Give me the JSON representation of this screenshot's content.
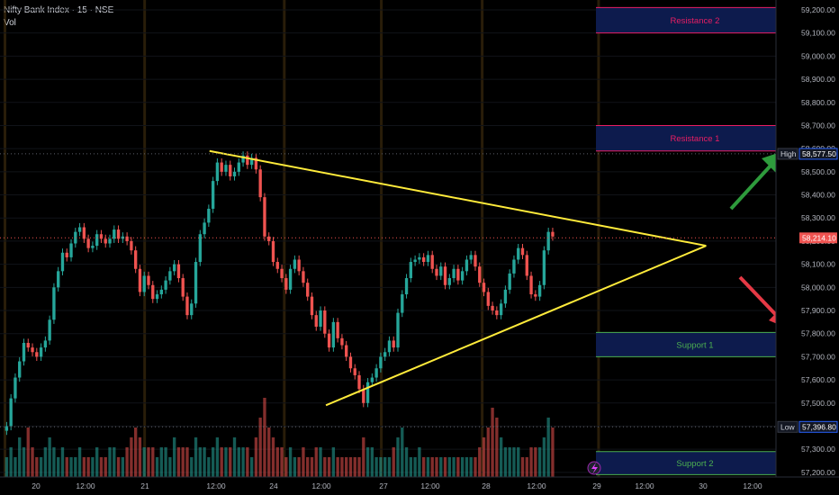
{
  "legend": {
    "symbol": "Nifty Bank Index · 15 · NSE",
    "volume_label": "Vol"
  },
  "colors": {
    "up": "#26a69a",
    "down": "#ef5350",
    "resistance": "#e91e63",
    "support": "#4caf50",
    "zone_fill": "#0d1b4d",
    "triangle": "#ffeb3b",
    "arrow_up": "#2e9b3c",
    "arrow_down": "#e53945",
    "session_line": "#4a3510"
  },
  "chart_data": {
    "type": "candlestick",
    "title": "",
    "symbol": "Nifty Bank Index",
    "interval": "15",
    "exchange": "NSE",
    "y_axis": {
      "ticks": [
        "59,200.00",
        "59,100.00",
        "59,000.00",
        "58,900.00",
        "58,800.00",
        "58,700.00",
        "58,600.00",
        "58,500.00",
        "58,400.00",
        "58,300.00",
        "58,200.00",
        "58,100.00",
        "58,000.00",
        "57,900.00",
        "57,800.00",
        "57,700.00",
        "57,600.00",
        "57,500.00",
        "57,400.00",
        "57,300.00",
        "57,200.00"
      ],
      "range": [
        57180,
        59235
      ]
    },
    "x_axis": {
      "ticks": [
        "20",
        "12:00",
        "21",
        "12:00",
        "24",
        "12:00",
        "27",
        "12:00",
        "28",
        "12:00",
        "29",
        "12:00",
        "30",
        "12:00"
      ]
    },
    "price_badges": [
      {
        "label": "High",
        "value": "58,577.50"
      },
      {
        "label": "",
        "value": "58,214.10"
      },
      {
        "label": "Low",
        "value": "57,396.80"
      }
    ],
    "zones": [
      {
        "name": "Resistance 2",
        "kind": "resistance",
        "top": 59210,
        "bottom": 59100
      },
      {
        "name": "Resistance 1",
        "kind": "resistance",
        "top": 58700,
        "bottom": 58590
      },
      {
        "name": "Support 1",
        "kind": "support",
        "top": 57805,
        "bottom": 57700
      },
      {
        "name": "Support 2",
        "kind": "support",
        "top": 57290,
        "bottom": 57190
      }
    ],
    "triangle": {
      "upper": [
        [
          0.27,
          58590
        ],
        [
          0.91,
          58180
        ]
      ],
      "lower": [
        [
          0.42,
          57490
        ],
        [
          0.91,
          58180
        ]
      ]
    },
    "candles_close": [
      57400,
      57520,
      57610,
      57680,
      57760,
      57740,
      57720,
      57700,
      57740,
      57770,
      57860,
      58000,
      58070,
      58150,
      58130,
      58190,
      58240,
      58260,
      58210,
      58170,
      58180,
      58230,
      58210,
      58190,
      58210,
      58250,
      58210,
      58220,
      58200,
      58160,
      58080,
      57980,
      58050,
      58010,
      57950,
      57970,
      57990,
      58030,
      58070,
      58100,
      58040,
      57960,
      57880,
      57930,
      58110,
      58230,
      58280,
      58340,
      58460,
      58540,
      58500,
      58530,
      58480,
      58500,
      58540,
      58570,
      58530,
      58560,
      58510,
      58390,
      58220,
      58200,
      58110,
      58080,
      58040,
      57990,
      58080,
      58120,
      58070,
      58020,
      57960,
      57880,
      57830,
      57900,
      57800,
      57740,
      57850,
      57780,
      57750,
      57700,
      57650,
      57620,
      57560,
      57500,
      57590,
      57610,
      57650,
      57700,
      57720,
      57770,
      57740,
      57890,
      57970,
      58040,
      58110,
      58120,
      58130,
      58110,
      58140,
      58080,
      58050,
      58090,
      58010,
      58040,
      58080,
      58030,
      58070,
      58120,
      58140,
      58090,
      58020,
      57980,
      57920,
      57900,
      57880,
      57930,
      57990,
      58060,
      58120,
      58170,
      58140,
      58050,
      57970,
      57960,
      58010,
      58160,
      58240,
      58220
    ],
    "candles_open": [
      57380,
      57400,
      57520,
      57610,
      57680,
      57760,
      57740,
      57720,
      57700,
      57740,
      57770,
      57860,
      58000,
      58070,
      58150,
      58130,
      58190,
      58240,
      58260,
      58210,
      58170,
      58180,
      58230,
      58210,
      58190,
      58210,
      58250,
      58210,
      58220,
      58200,
      58160,
      58080,
      57980,
      58050,
      58010,
      57950,
      57970,
      57990,
      58030,
      58070,
      58100,
      58040,
      57960,
      57880,
      57930,
      58110,
      58230,
      58280,
      58340,
      58460,
      58540,
      58500,
      58530,
      58480,
      58500,
      58540,
      58570,
      58530,
      58560,
      58510,
      58390,
      58220,
      58200,
      58110,
      58080,
      58040,
      57990,
      58080,
      58120,
      58070,
      58020,
      57960,
      57880,
      57830,
      57900,
      57800,
      57740,
      57850,
      57780,
      57750,
      57700,
      57650,
      57620,
      57560,
      57500,
      57590,
      57610,
      57650,
      57700,
      57720,
      57770,
      57740,
      57890,
      57970,
      58040,
      58110,
      58120,
      58130,
      58110,
      58140,
      58080,
      58050,
      58090,
      58010,
      58040,
      58080,
      58030,
      58070,
      58120,
      58140,
      58090,
      58020,
      57980,
      57920,
      57900,
      57880,
      57930,
      57990,
      58060,
      58120,
      58170,
      58140,
      58050,
      57970,
      57960,
      58010,
      58160,
      58240
    ],
    "volume": [
      2,
      3,
      2,
      4,
      3,
      5,
      3,
      2,
      2,
      3,
      4,
      3,
      2,
      3,
      2,
      2,
      2,
      3,
      2,
      2,
      2,
      3,
      2,
      2,
      3,
      3,
      2,
      2,
      3,
      4,
      5,
      4,
      3,
      3,
      3,
      2,
      3,
      3,
      2,
      4,
      3,
      3,
      3,
      2,
      4,
      3,
      3,
      2,
      3,
      4,
      3,
      3,
      3,
      4,
      3,
      3,
      3,
      2,
      4,
      6,
      8,
      5,
      4,
      3,
      3,
      2,
      3,
      2,
      2,
      3,
      2,
      2,
      3,
      3,
      2,
      2,
      3,
      2,
      2,
      2,
      2,
      2,
      2,
      4,
      3,
      3,
      2,
      2,
      2,
      2,
      3,
      4,
      5,
      3,
      2,
      2,
      3,
      2,
      2,
      2,
      2,
      2,
      2,
      2,
      2,
      2,
      2,
      2,
      2,
      2,
      3,
      4,
      5,
      7,
      6,
      4,
      3,
      3,
      3,
      3,
      2,
      2,
      3,
      3,
      3,
      4,
      6,
      5
    ]
  }
}
